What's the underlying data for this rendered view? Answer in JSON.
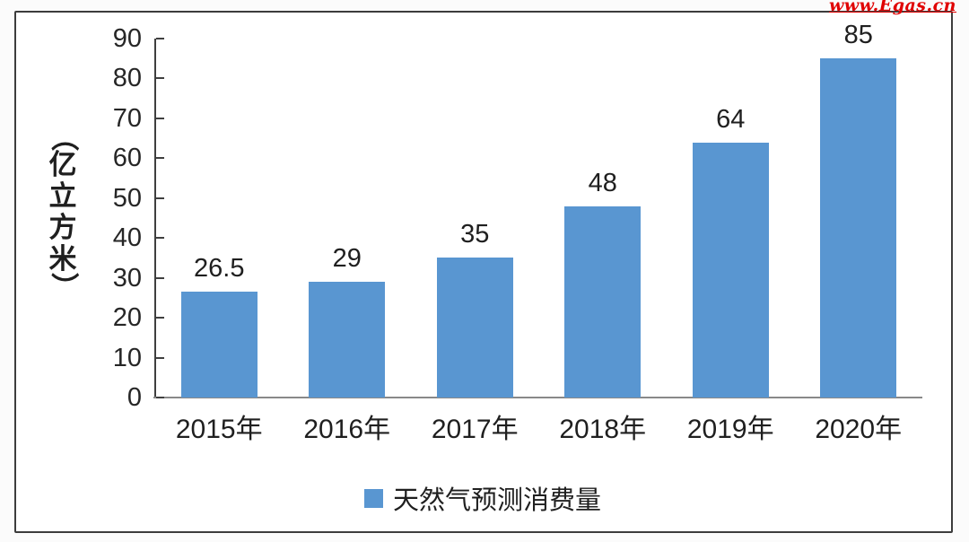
{
  "watermark": {
    "text": "www.Egas.cn",
    "color": "#e00000"
  },
  "frame": {
    "border_color": "#3c3c3c",
    "background": "#ffffff"
  },
  "chart_data": {
    "type": "bar",
    "categories": [
      "2015年",
      "2016年",
      "2017年",
      "2018年",
      "2019年",
      "2020年"
    ],
    "values": [
      26.5,
      29,
      35,
      48,
      64,
      85
    ],
    "value_labels": [
      "26.5",
      "29",
      "35",
      "48",
      "64",
      "85"
    ],
    "title": "",
    "xlabel": "",
    "ylabel": "（亿立方米）",
    "ylim": [
      0,
      90
    ],
    "ytick_step": 10,
    "ytick_labels": [
      "0",
      "10",
      "20",
      "30",
      "40",
      "50",
      "60",
      "70",
      "80",
      "90"
    ],
    "grid": false,
    "bar_color": "#5996d1",
    "axis_color": "#3f3f3f",
    "baseline_color": "#898989",
    "legend_position": "bottom",
    "legend": [
      {
        "label": "天然气预测消费量",
        "color": "#5996d1"
      }
    ]
  }
}
